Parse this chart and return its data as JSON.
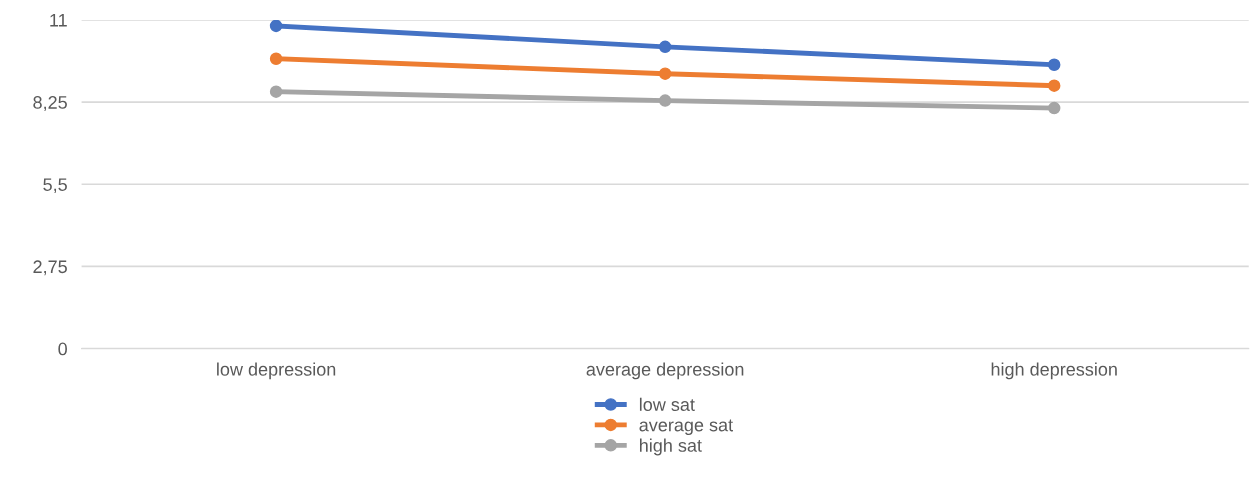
{
  "chart_data": {
    "type": "line",
    "categories": [
      "low depression",
      "average depression",
      "high depression"
    ],
    "series": [
      {
        "name": "low sat",
        "color": "#4472c4",
        "values": [
          10.8,
          10.1,
          9.5
        ]
      },
      {
        "name": "average sat",
        "color": "#ed7d31",
        "values": [
          9.7,
          9.2,
          8.8
        ]
      },
      {
        "name": "high sat",
        "color": "#a5a5a5",
        "values": [
          8.6,
          8.3,
          8.05
        ]
      }
    ],
    "ylim": [
      0,
      11
    ],
    "yticks": [
      0,
      {
        "value": 2.75,
        "label": "2,75"
      },
      {
        "value": 5.5,
        "label": "5,5"
      },
      {
        "value": 8.25,
        "label": "8,25"
      },
      11
    ],
    "grid": "y",
    "legend": "bottom",
    "marker": "circle",
    "line_style": "solid"
  }
}
